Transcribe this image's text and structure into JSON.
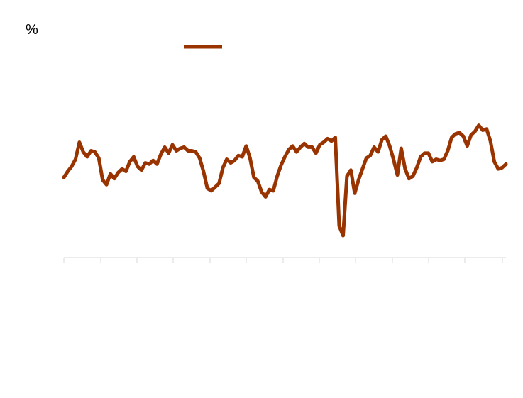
{
  "chart_data": {
    "type": "line",
    "unit_label": "%",
    "title": "",
    "xlabel": "",
    "ylabel": "",
    "ylim": [
      -16,
      8
    ],
    "grid": false,
    "legend": "top-center",
    "color": "#993300",
    "series": [
      {
        "values": [
          -0.2,
          0.3,
          0.7,
          1.3,
          2.7,
          1.9,
          1.5,
          2.0,
          1.9,
          1.4,
          -0.4,
          -0.8,
          0.1,
          -0.3,
          0.2,
          0.5,
          0.3,
          1.1,
          1.5,
          0.7,
          0.4,
          1.0,
          0.9,
          1.2,
          0.9,
          1.7,
          2.3,
          1.8,
          2.5,
          2.0,
          2.2,
          2.3,
          2.0,
          2.0,
          1.9,
          1.4,
          0.3,
          -1.1,
          -1.3,
          -1.0,
          -0.7,
          0.6,
          1.3,
          1.0,
          1.2,
          1.6,
          1.5,
          2.4,
          1.4,
          -0.2,
          -0.5,
          -1.4,
          -1.8,
          -1.2,
          -1.3,
          -0.1,
          0.8,
          1.5,
          2.1,
          2.4,
          1.9,
          2.3,
          2.6,
          2.3,
          2.3,
          1.8,
          2.5,
          2.7,
          3.0,
          2.8,
          3.1,
          -4.2,
          -5.0,
          -0.1,
          0.4,
          -1.5,
          -0.4,
          0.5,
          1.4,
          1.6,
          2.3,
          1.9,
          2.9,
          3.2,
          2.4,
          1.3,
          0.0,
          2.2,
          0.5,
          -0.3,
          -0.1,
          0.6,
          1.5,
          1.8,
          1.8,
          1.1,
          1.3,
          1.2,
          1.3,
          2.0,
          3.1,
          3.4,
          3.5,
          3.2,
          2.4,
          3.3,
          3.6,
          4.1,
          3.7,
          3.8,
          2.8,
          1.1,
          0.5,
          0.6,
          0.9
        ]
      }
    ]
  }
}
